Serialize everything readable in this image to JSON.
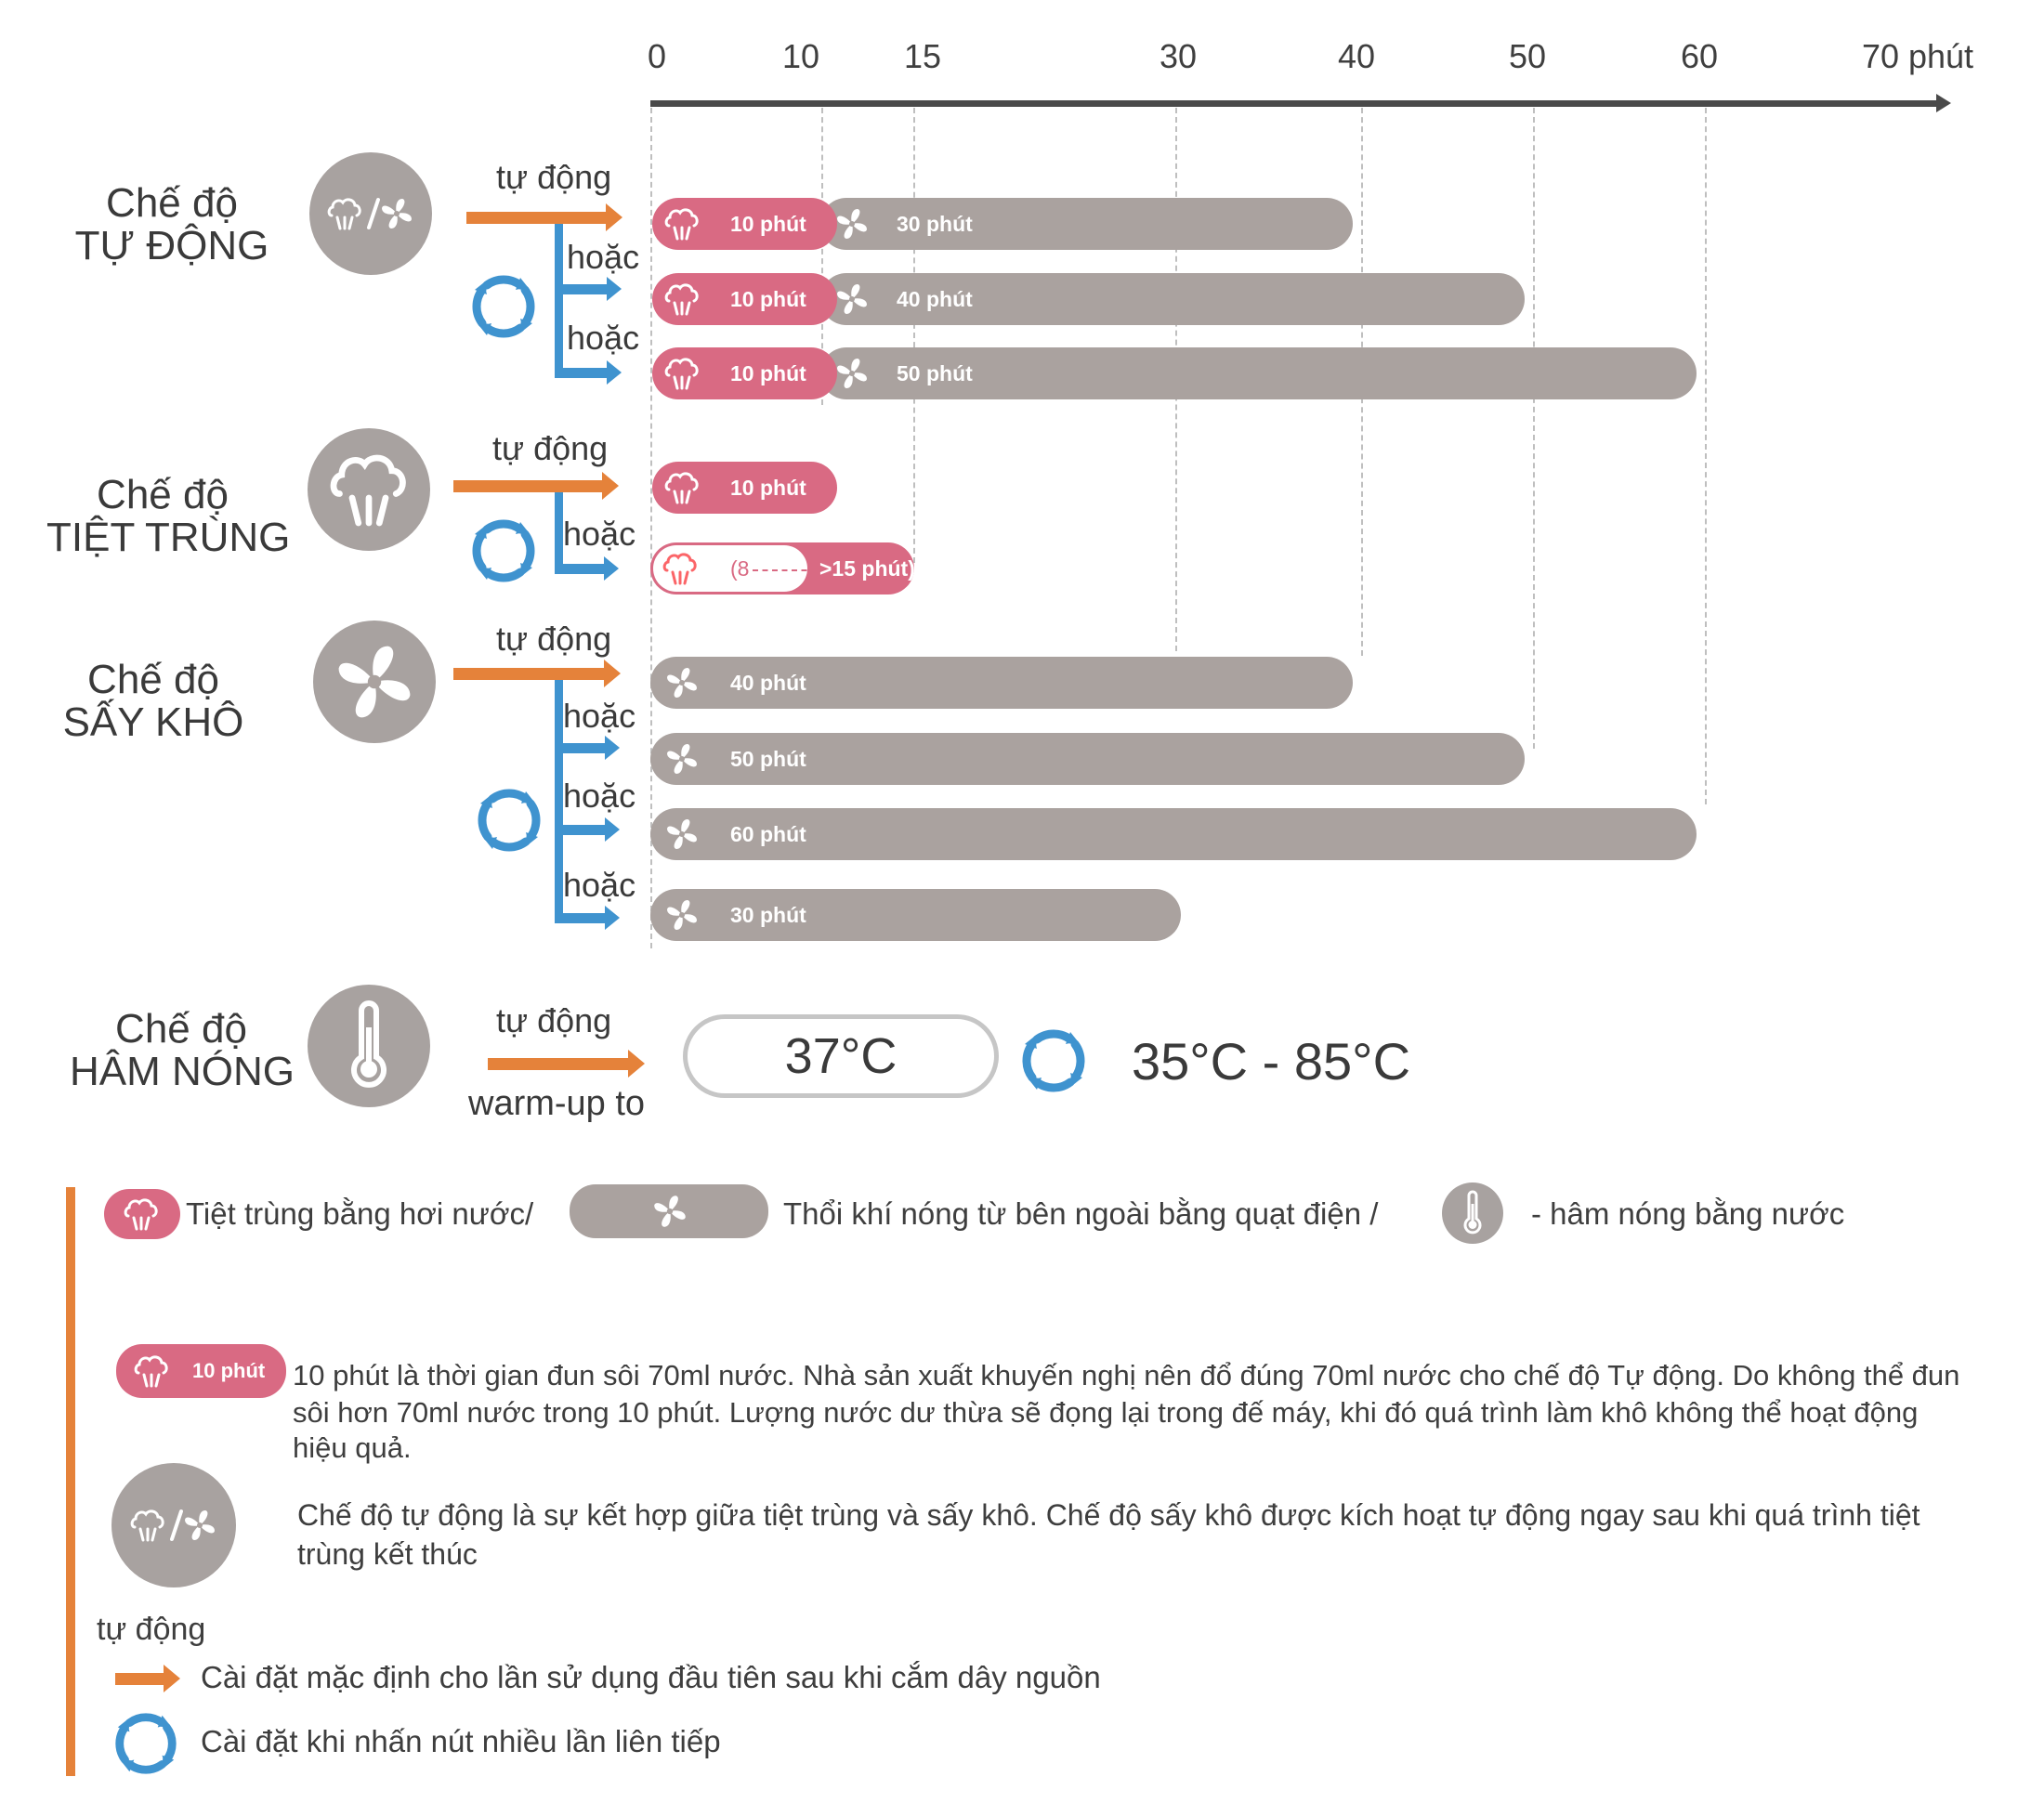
{
  "axis": {
    "ticks": [
      "0",
      "10",
      "15",
      "30",
      "40",
      "50",
      "60",
      "70 phút"
    ]
  },
  "modes": {
    "auto": {
      "line1": "Chế độ",
      "line2": "TỰ ĐỘNG",
      "icon": "steam-fan-icon"
    },
    "steril": {
      "line1": "Chế độ",
      "line2": "TIỆT TRÙNG",
      "icon": "steam-icon"
    },
    "dry": {
      "line1": "Chế độ",
      "line2": "SẤY KHÔ",
      "icon": "fan-icon"
    },
    "warm": {
      "line1": "Chế độ",
      "line2": "HÂM NÓNG",
      "icon": "thermometer-icon"
    }
  },
  "labels": {
    "tu_dong": "tự động",
    "hoac": "hoặc",
    "warmup": "warm-up to"
  },
  "chart_data": {
    "type": "bar",
    "x_unit": "phút",
    "xlim": [
      0,
      70
    ],
    "rows": [
      {
        "mode": "auto",
        "trigger": "tự động",
        "steam": 10,
        "fan": 30,
        "steam_label": "10 phút",
        "fan_label": "30 phút"
      },
      {
        "mode": "auto",
        "trigger": "hoặc",
        "steam": 10,
        "fan": 40,
        "steam_label": "10 phút",
        "fan_label": "40 phút"
      },
      {
        "mode": "auto",
        "trigger": "hoặc",
        "steam": 10,
        "fan": 50,
        "steam_label": "10 phút",
        "fan_label": "50 phút"
      },
      {
        "mode": "steril",
        "trigger": "tự động",
        "steam": 10,
        "steam_label": "10 phút"
      },
      {
        "mode": "steril",
        "trigger": "hoặc",
        "steam_range": [
          8,
          15
        ],
        "steam_label_a": "(8",
        "steam_label_b": ">15 phút)"
      },
      {
        "mode": "dry",
        "trigger": "tự động",
        "fan": 40,
        "fan_label": "40 phút"
      },
      {
        "mode": "dry",
        "trigger": "hoặc",
        "fan": 50,
        "fan_label": "50 phút"
      },
      {
        "mode": "dry",
        "trigger": "hoặc",
        "fan": 60,
        "fan_label": "60 phút"
      },
      {
        "mode": "dry",
        "trigger": "hoặc",
        "fan": 30,
        "fan_label": "30 phút"
      }
    ]
  },
  "warm": {
    "default_temp": "37°C",
    "range": "35°C - 85°C"
  },
  "legend": {
    "steam_text": "Tiệt trùng bằng hơi nước/",
    "fan_text": "Thổi khí nóng từ bên ngoài bằng quạt điện /",
    "warm_text": "- hâm nóng bằng nước",
    "note_badge": "10 phút",
    "note1_l1": "10 phút là thời gian đun sôi 70ml nước. Nhà sản xuất khuyến nghị nên đổ đúng 70ml nước cho chế độ Tự động. Do không thể đun",
    "note1_l2": "sôi hơn 70ml nước trong 10 phút. Lượng nước dư thừa sẽ đọng lại trong đế máy, khi đó quá trình làm khô không thể hoạt động",
    "note1_l3": "hiệu quả.",
    "note2_l1": "Chế độ tự động là sự kết hợp giữa tiệt trùng và sấy khô. Chế độ sấy khô được kích hoạt tự động ngay sau khi quá trình tiệt",
    "note2_l2": "trùng kết thúc",
    "tu_dong": "tự động",
    "default_text": "Cài đặt mặc định cho lần sử dụng đầu tiên sau khi cắm dây nguồn",
    "cycle_text": "Cài đặt khi nhấn nút nhiều lần liên tiếp"
  },
  "colors": {
    "steam": "#d96a83",
    "fan": "#aaa29f",
    "orange": "#e5823a",
    "blue": "#3f93cf"
  }
}
